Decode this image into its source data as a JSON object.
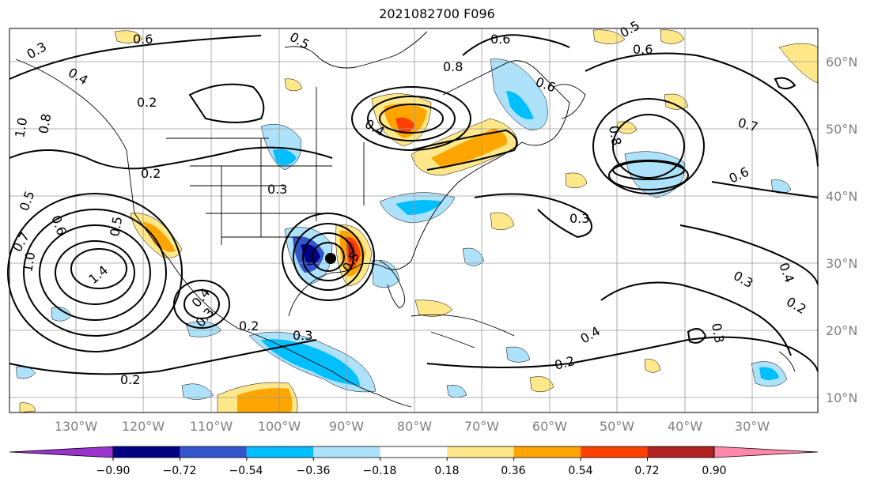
{
  "title": "2021082700 F096",
  "lon_labels": [
    "130°W",
    "120°W",
    "110°W",
    "100°W",
    "90°W",
    "80°W",
    "70°W",
    "60°W",
    "50°W",
    "40°W",
    "30°W"
  ],
  "lat_labels": [
    "60°N",
    "50°N",
    "40°N",
    "30°N",
    "20°N",
    "10°N"
  ],
  "colorbar": {
    "tick_labels": [
      "−0.90",
      "−0.72",
      "−0.54",
      "−0.36",
      "−0.18",
      "0.18",
      "0.36",
      "0.54",
      "0.72",
      "0.90"
    ],
    "colors": [
      "#9933cc",
      "#000080",
      "#3355cc",
      "#00bfff",
      "#aee2fb",
      "#ffffff",
      "#ffe88a",
      "#ffa500",
      "#ff4000",
      "#b22222",
      "#ff88aa"
    ]
  },
  "contour_labels": [
    {
      "text": "0.6"
    },
    {
      "text": "0.5"
    },
    {
      "text": "0.3"
    },
    {
      "text": "0.4"
    },
    {
      "text": "0.2"
    },
    {
      "text": "1.0"
    },
    {
      "text": "0.8"
    },
    {
      "text": "0.2"
    },
    {
      "text": "0.5"
    },
    {
      "text": "0.6"
    },
    {
      "text": "0.7"
    },
    {
      "text": "1.0"
    },
    {
      "text": "1.4"
    },
    {
      "text": "0.5"
    },
    {
      "text": "0.4"
    },
    {
      "text": "0.3"
    },
    {
      "text": "0.2"
    },
    {
      "text": "0.3"
    },
    {
      "text": "0.8"
    },
    {
      "text": "0.4"
    },
    {
      "text": "0.6"
    },
    {
      "text": "0.6"
    },
    {
      "text": "0.5"
    },
    {
      "text": "0.6"
    },
    {
      "text": "0.8"
    },
    {
      "text": "0.7"
    },
    {
      "text": "0.6"
    },
    {
      "text": "0.3"
    },
    {
      "text": "0.3"
    },
    {
      "text": "0.4"
    },
    {
      "text": "0.2"
    },
    {
      "text": "0.3"
    },
    {
      "text": "0.4"
    },
    {
      "text": "0.2"
    },
    {
      "text": "0.2"
    },
    {
      "text": "0.3"
    },
    {
      "text": "0.5"
    }
  ]
}
